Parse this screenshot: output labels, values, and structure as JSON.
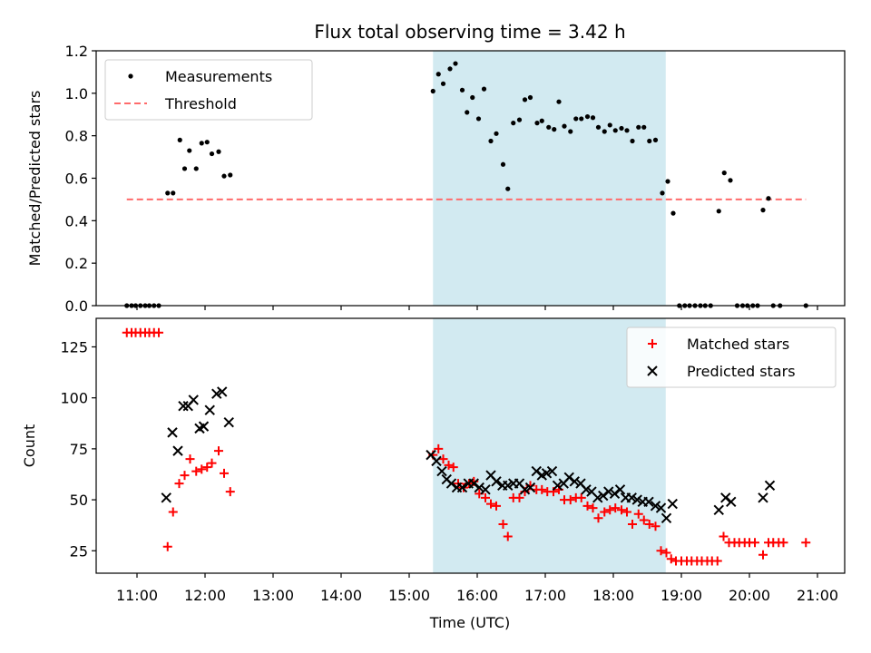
{
  "title": "Flux total observing time = 3.42 h",
  "shared_x": {
    "label": "Time (UTC)",
    "range_hours": [
      10.4,
      21.4
    ],
    "ticks": [
      11,
      12,
      13,
      14,
      15,
      16,
      17,
      18,
      19,
      20,
      21
    ],
    "tick_labels": [
      "11:00",
      "12:00",
      "13:00",
      "14:00",
      "15:00",
      "16:00",
      "17:00",
      "18:00",
      "19:00",
      "20:00",
      "21:00"
    ]
  },
  "shaded_interval": {
    "start": 15.35,
    "end": 18.77,
    "color": "#add8e6"
  },
  "colors": {
    "measurements": "#000000",
    "threshold": "#ff6b6b",
    "matched": "#ff0000",
    "predicted": "#000000",
    "shade": "#add8e6"
  },
  "chart_data": [
    {
      "type": "scatter",
      "ylabel": "Matched/Predicted stars",
      "ylim": [
        0,
        1.2
      ],
      "yticks": [
        0.0,
        0.2,
        0.4,
        0.6,
        0.8,
        1.0,
        1.2
      ],
      "ytick_labels": [
        "0.0",
        "0.2",
        "0.4",
        "0.6",
        "0.8",
        "1.0",
        "1.2"
      ],
      "legend": {
        "placement": "top-left",
        "entries": [
          "Measurements",
          "Threshold"
        ]
      },
      "threshold": {
        "name": "Threshold",
        "y": 0.5,
        "x_range": [
          10.85,
          20.83
        ]
      },
      "series": [
        {
          "name": "Measurements",
          "points": [
            [
              10.85,
              0
            ],
            [
              10.92,
              0
            ],
            [
              10.98,
              0
            ],
            [
              11.05,
              0
            ],
            [
              11.12,
              0
            ],
            [
              11.18,
              0
            ],
            [
              11.25,
              0
            ],
            [
              11.32,
              0
            ],
            [
              11.45,
              0.53
            ],
            [
              11.53,
              0.53
            ],
            [
              11.63,
              0.78
            ],
            [
              11.7,
              0.645
            ],
            [
              11.77,
              0.73
            ],
            [
              11.87,
              0.645
            ],
            [
              11.95,
              0.765
            ],
            [
              12.03,
              0.77
            ],
            [
              12.1,
              0.715
            ],
            [
              12.2,
              0.725
            ],
            [
              12.28,
              0.61
            ],
            [
              12.37,
              0.615
            ],
            [
              15.35,
              1.01
            ],
            [
              15.43,
              1.09
            ],
            [
              15.5,
              1.045
            ],
            [
              15.6,
              1.115
            ],
            [
              15.68,
              1.14
            ],
            [
              15.78,
              1.015
            ],
            [
              15.85,
              0.91
            ],
            [
              15.93,
              0.98
            ],
            [
              16.02,
              0.88
            ],
            [
              16.1,
              1.02
            ],
            [
              16.2,
              0.775
            ],
            [
              16.28,
              0.81
            ],
            [
              16.38,
              0.665
            ],
            [
              16.45,
              0.55
            ],
            [
              16.53,
              0.86
            ],
            [
              16.62,
              0.875
            ],
            [
              16.7,
              0.97
            ],
            [
              16.78,
              0.98
            ],
            [
              16.88,
              0.86
            ],
            [
              16.95,
              0.87
            ],
            [
              17.05,
              0.84
            ],
            [
              17.13,
              0.83
            ],
            [
              17.2,
              0.96
            ],
            [
              17.28,
              0.845
            ],
            [
              17.37,
              0.82
            ],
            [
              17.45,
              0.88
            ],
            [
              17.53,
              0.88
            ],
            [
              17.62,
              0.89
            ],
            [
              17.7,
              0.885
            ],
            [
              17.78,
              0.84
            ],
            [
              17.87,
              0.82
            ],
            [
              17.95,
              0.85
            ],
            [
              18.03,
              0.825
            ],
            [
              18.12,
              0.835
            ],
            [
              18.2,
              0.825
            ],
            [
              18.28,
              0.775
            ],
            [
              18.37,
              0.84
            ],
            [
              18.45,
              0.84
            ],
            [
              18.53,
              0.775
            ],
            [
              18.62,
              0.78
            ],
            [
              18.72,
              0.53
            ],
            [
              18.8,
              0.585
            ],
            [
              18.88,
              0.435
            ],
            [
              18.97,
              0
            ],
            [
              19.05,
              0
            ],
            [
              19.12,
              0
            ],
            [
              19.2,
              0
            ],
            [
              19.28,
              0
            ],
            [
              19.35,
              0
            ],
            [
              19.43,
              0
            ],
            [
              19.55,
              0.445
            ],
            [
              19.63,
              0.625
            ],
            [
              19.72,
              0.59
            ],
            [
              19.82,
              0
            ],
            [
              19.9,
              0
            ],
            [
              19.97,
              0
            ],
            [
              20.05,
              0
            ],
            [
              20.12,
              0
            ],
            [
              20.2,
              0.45
            ],
            [
              20.28,
              0.505
            ],
            [
              20.35,
              0
            ],
            [
              20.45,
              0
            ],
            [
              20.83,
              0
            ]
          ]
        }
      ]
    },
    {
      "type": "scatter",
      "ylabel": "Count",
      "ylim": [
        14,
        139
      ],
      "yticks": [
        25,
        50,
        75,
        100,
        125
      ],
      "ytick_labels": [
        "25",
        "50",
        "75",
        "100",
        "125"
      ],
      "legend": {
        "placement": "top-right",
        "entries": [
          "Matched stars",
          "Predicted stars"
        ]
      },
      "series": [
        {
          "name": "Matched stars",
          "marker": "plus",
          "points": [
            [
              10.85,
              132
            ],
            [
              10.92,
              132
            ],
            [
              10.98,
              132
            ],
            [
              11.05,
              132
            ],
            [
              11.12,
              132
            ],
            [
              11.18,
              132
            ],
            [
              11.25,
              132
            ],
            [
              11.32,
              132
            ],
            [
              11.45,
              27
            ],
            [
              11.53,
              44
            ],
            [
              11.62,
              58
            ],
            [
              11.7,
              62
            ],
            [
              11.78,
              70
            ],
            [
              11.87,
              64
            ],
            [
              11.95,
              65
            ],
            [
              12.03,
              66
            ],
            [
              12.1,
              68
            ],
            [
              12.2,
              74
            ],
            [
              12.28,
              63
            ],
            [
              12.37,
              54
            ],
            [
              15.35,
              72
            ],
            [
              15.43,
              75
            ],
            [
              15.5,
              70
            ],
            [
              15.58,
              67
            ],
            [
              15.65,
              66
            ],
            [
              15.72,
              58
            ],
            [
              15.8,
              56
            ],
            [
              15.88,
              58
            ],
            [
              15.95,
              59
            ],
            [
              16.03,
              53
            ],
            [
              16.12,
              51
            ],
            [
              16.2,
              48
            ],
            [
              16.28,
              47
            ],
            [
              16.38,
              38
            ],
            [
              16.45,
              32
            ],
            [
              16.53,
              51
            ],
            [
              16.62,
              51
            ],
            [
              16.7,
              54
            ],
            [
              16.78,
              57
            ],
            [
              16.87,
              55
            ],
            [
              16.95,
              55
            ],
            [
              17.03,
              54
            ],
            [
              17.12,
              54
            ],
            [
              17.2,
              55
            ],
            [
              17.28,
              50
            ],
            [
              17.37,
              50
            ],
            [
              17.45,
              51
            ],
            [
              17.53,
              51
            ],
            [
              17.62,
              47
            ],
            [
              17.7,
              46
            ],
            [
              17.78,
              41
            ],
            [
              17.87,
              44
            ],
            [
              17.95,
              45
            ],
            [
              18.03,
              46
            ],
            [
              18.12,
              45
            ],
            [
              18.2,
              44
            ],
            [
              18.28,
              38
            ],
            [
              18.37,
              43
            ],
            [
              18.45,
              40
            ],
            [
              18.53,
              38
            ],
            [
              18.62,
              37
            ],
            [
              18.7,
              25
            ],
            [
              18.78,
              24
            ],
            [
              18.85,
              21
            ],
            [
              18.92,
              20
            ],
            [
              19.0,
              20
            ],
            [
              19.08,
              20
            ],
            [
              19.15,
              20
            ],
            [
              19.23,
              20
            ],
            [
              19.3,
              20
            ],
            [
              19.38,
              20
            ],
            [
              19.45,
              20
            ],
            [
              19.53,
              20
            ],
            [
              19.62,
              32
            ],
            [
              19.7,
              29
            ],
            [
              19.78,
              29
            ],
            [
              19.85,
              29
            ],
            [
              19.93,
              29
            ],
            [
              20.0,
              29
            ],
            [
              20.08,
              29
            ],
            [
              20.2,
              23
            ],
            [
              20.28,
              29
            ],
            [
              20.35,
              29
            ],
            [
              20.43,
              29
            ],
            [
              20.5,
              29
            ],
            [
              20.83,
              29
            ]
          ]
        },
        {
          "name": "Predicted stars",
          "marker": "x",
          "points": [
            [
              11.43,
              51
            ],
            [
              11.52,
              83
            ],
            [
              11.6,
              74
            ],
            [
              11.68,
              96
            ],
            [
              11.75,
              96
            ],
            [
              11.83,
              99
            ],
            [
              11.92,
              85
            ],
            [
              11.98,
              86
            ],
            [
              12.07,
              94
            ],
            [
              12.17,
              102
            ],
            [
              12.25,
              103
            ],
            [
              12.35,
              88
            ],
            [
              15.32,
              72
            ],
            [
              15.4,
              69
            ],
            [
              15.48,
              64
            ],
            [
              15.55,
              60
            ],
            [
              15.62,
              58
            ],
            [
              15.7,
              56
            ],
            [
              15.78,
              56
            ],
            [
              15.87,
              58
            ],
            [
              15.95,
              58
            ],
            [
              16.03,
              56
            ],
            [
              16.12,
              55
            ],
            [
              16.2,
              62
            ],
            [
              16.28,
              59
            ],
            [
              16.37,
              57
            ],
            [
              16.45,
              57
            ],
            [
              16.53,
              58
            ],
            [
              16.62,
              58
            ],
            [
              16.7,
              55
            ],
            [
              16.78,
              56
            ],
            [
              16.87,
              64
            ],
            [
              16.95,
              62
            ],
            [
              17.02,
              63
            ],
            [
              17.1,
              64
            ],
            [
              17.18,
              57
            ],
            [
              17.27,
              58
            ],
            [
              17.35,
              61
            ],
            [
              17.43,
              59
            ],
            [
              17.52,
              58
            ],
            [
              17.6,
              55
            ],
            [
              17.68,
              54
            ],
            [
              17.77,
              51
            ],
            [
              17.85,
              52
            ],
            [
              17.93,
              54
            ],
            [
              18.02,
              53
            ],
            [
              18.1,
              55
            ],
            [
              18.18,
              51
            ],
            [
              18.27,
              51
            ],
            [
              18.35,
              50
            ],
            [
              18.43,
              49
            ],
            [
              18.52,
              49
            ],
            [
              18.62,
              47
            ],
            [
              18.7,
              46
            ],
            [
              18.78,
              41
            ],
            [
              18.87,
              48
            ],
            [
              19.55,
              45
            ],
            [
              19.65,
              51
            ],
            [
              19.73,
              49
            ],
            [
              20.2,
              51
            ],
            [
              20.3,
              57
            ]
          ]
        }
      ]
    }
  ]
}
